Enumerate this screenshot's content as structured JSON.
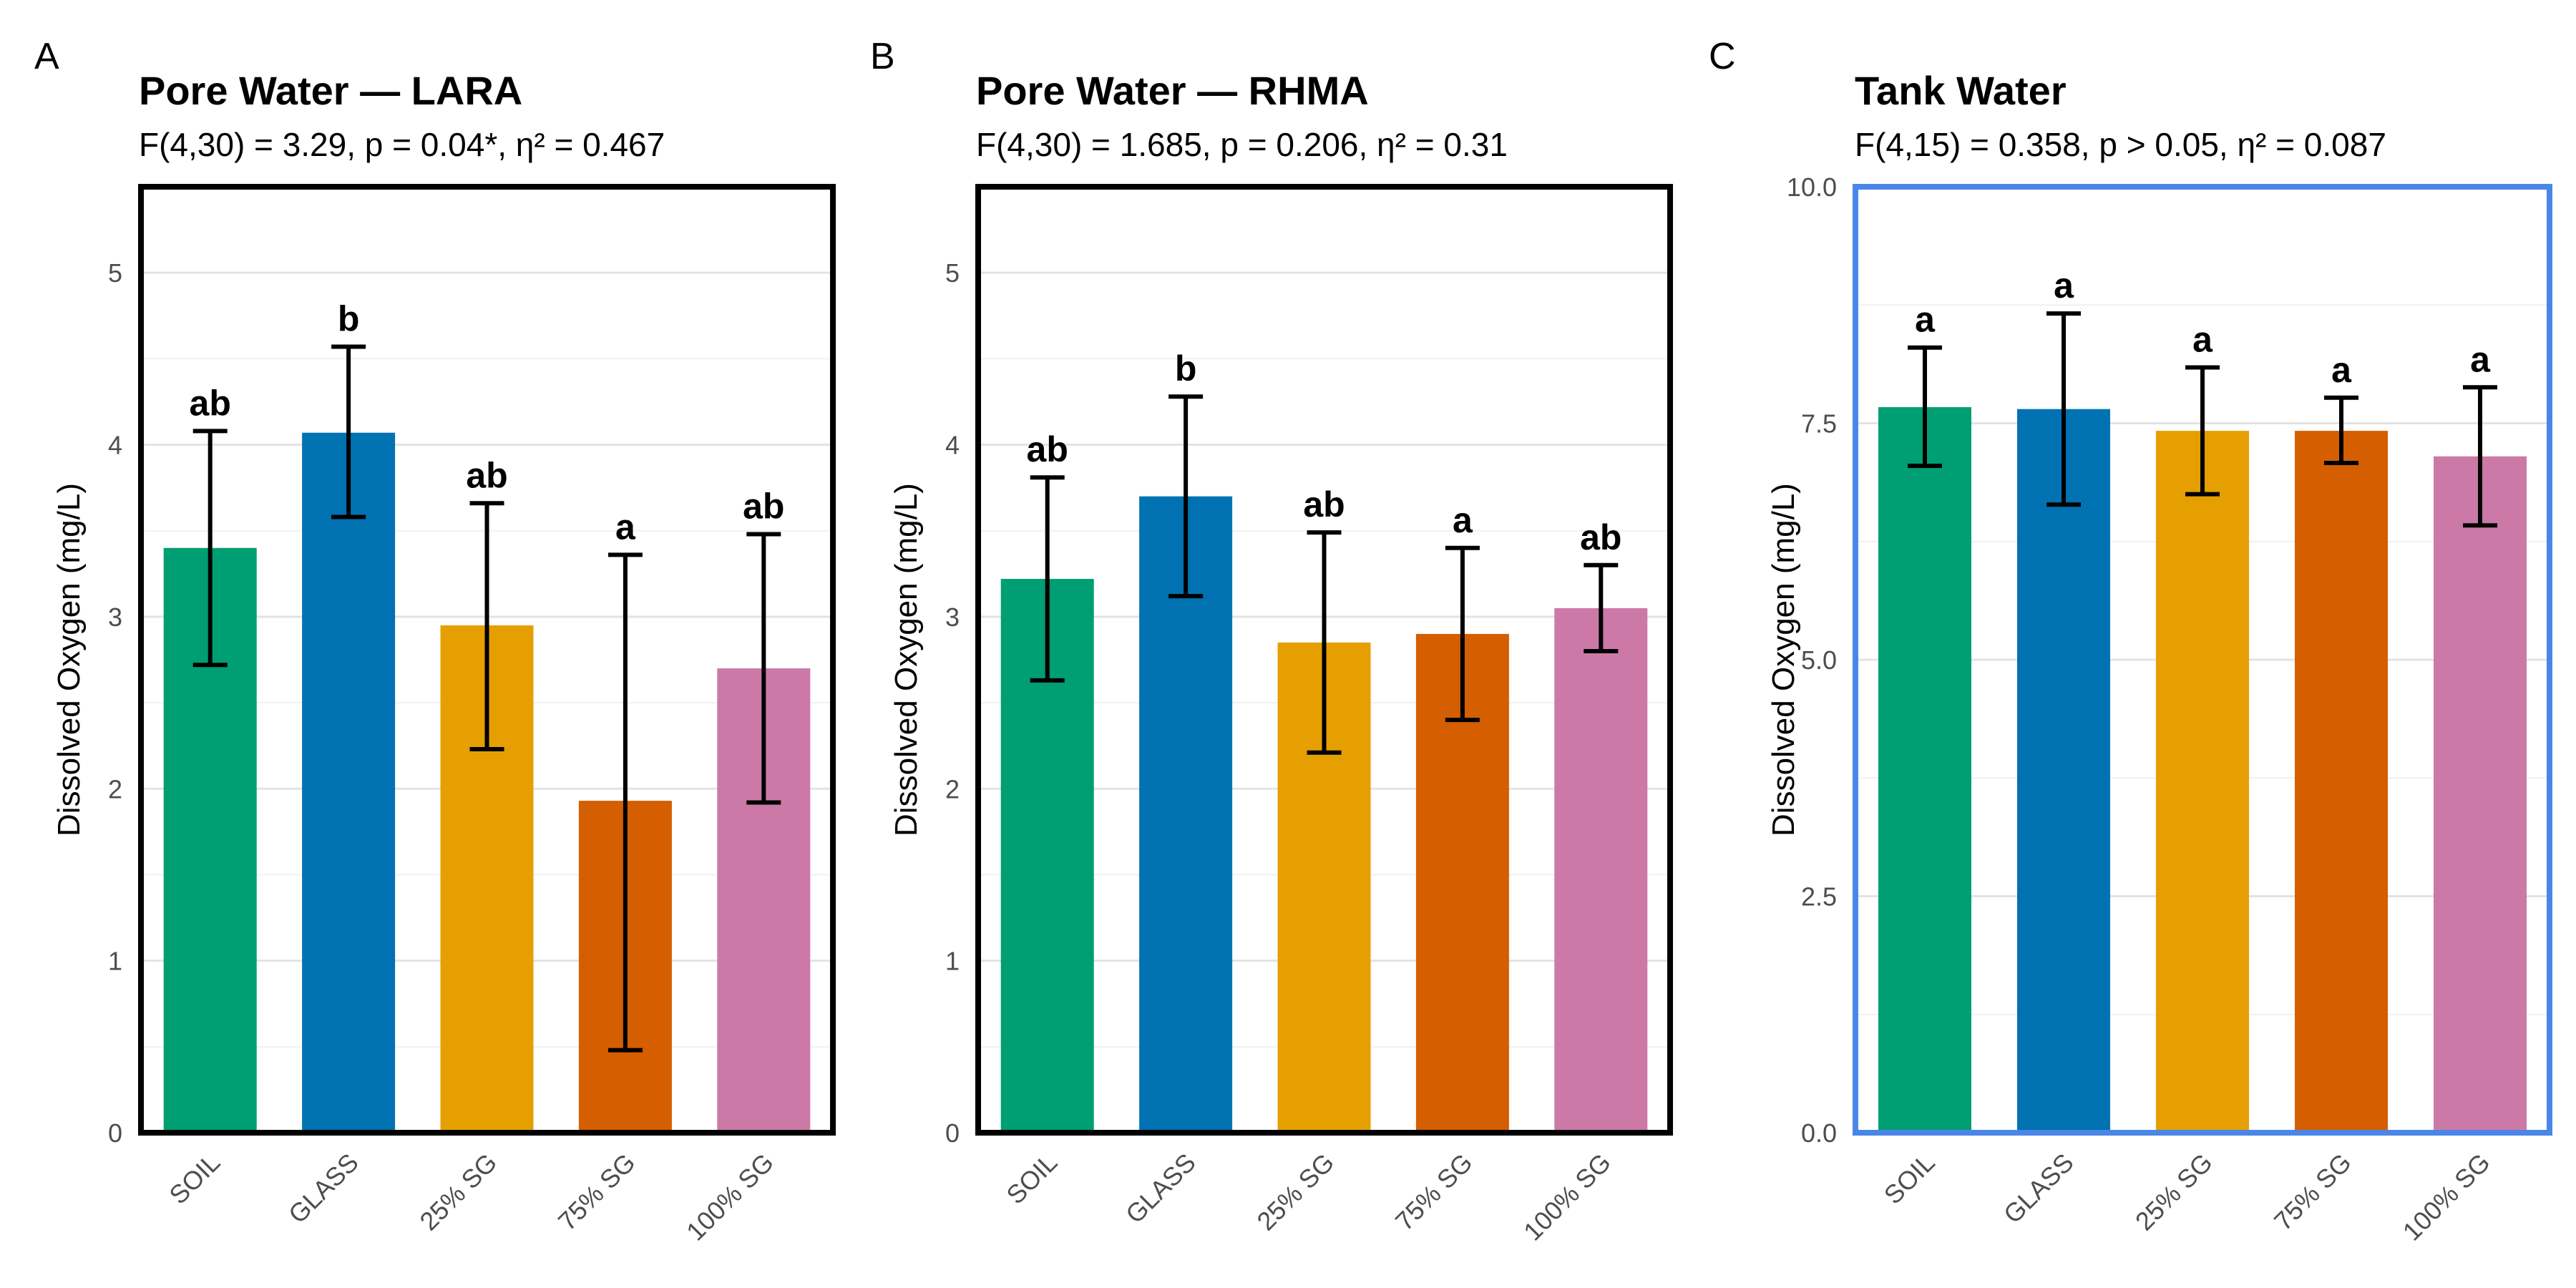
{
  "chart_data": [
    {
      "type": "bar",
      "panel_label": "A",
      "title": "Pore Water — LARA",
      "subtitle": "F(4,30) = 3.29, p = 0.04*, η² = 0.467",
      "ylabel": "Dissolved Oxygen (mg/L)",
      "xlabel": "",
      "ylim": [
        0,
        5.5
      ],
      "yticks": [
        0,
        1,
        2,
        3,
        4,
        5
      ],
      "ytick_labels": [
        "0",
        "1",
        "2",
        "3",
        "4",
        "5"
      ],
      "categories": [
        "SOIL",
        "GLASS",
        "25% SG",
        "75% SG",
        "100% SG"
      ],
      "values": [
        3.4,
        4.07,
        2.95,
        1.93,
        2.7
      ],
      "error_low": [
        2.72,
        3.58,
        2.23,
        0.48,
        1.92
      ],
      "error_high": [
        4.08,
        4.57,
        3.66,
        3.36,
        3.48
      ],
      "significance": [
        "ab",
        "b",
        "ab",
        "a",
        "ab"
      ],
      "frame_color": "#000000",
      "grid": true
    },
    {
      "type": "bar",
      "panel_label": "B",
      "title": "Pore Water — RHMA",
      "subtitle": "F(4,30) = 1.685, p = 0.206, η² = 0.31",
      "ylabel": "Dissolved Oxygen (mg/L)",
      "xlabel": "",
      "ylim": [
        0,
        5.5
      ],
      "yticks": [
        0,
        1,
        2,
        3,
        4,
        5
      ],
      "ytick_labels": [
        "0",
        "1",
        "2",
        "3",
        "4",
        "5"
      ],
      "categories": [
        "SOIL",
        "GLASS",
        "25% SG",
        "75% SG",
        "100% SG"
      ],
      "values": [
        3.22,
        3.7,
        2.85,
        2.9,
        3.05
      ],
      "error_low": [
        2.63,
        3.12,
        2.21,
        2.4,
        2.8
      ],
      "error_high": [
        3.81,
        4.28,
        3.49,
        3.4,
        3.3
      ],
      "significance": [
        "ab",
        "b",
        "ab",
        "a",
        "ab"
      ],
      "frame_color": "#000000",
      "grid": true
    },
    {
      "type": "bar",
      "panel_label": "C",
      "title": "Tank Water",
      "subtitle": "F(4,15) = 0.358, p > 0.05, η² = 0.087",
      "ylabel": "Dissolved Oxygen (mg/L)",
      "xlabel": "",
      "ylim": [
        0,
        10
      ],
      "yticks": [
        0,
        2.5,
        5,
        7.5,
        10
      ],
      "ytick_labels": [
        "0.0",
        "2.5",
        "5.0",
        "7.5",
        "10.0"
      ],
      "categories": [
        "SOIL",
        "GLASS",
        "25% SG",
        "75% SG",
        "100% SG"
      ],
      "values": [
        7.67,
        7.65,
        7.42,
        7.42,
        7.15
      ],
      "error_low": [
        7.05,
        6.64,
        6.75,
        7.08,
        6.42
      ],
      "error_high": [
        8.3,
        8.66,
        8.09,
        7.77,
        7.88
      ],
      "significance": [
        "a",
        "a",
        "a",
        "a",
        "a"
      ],
      "frame_color": "#4a86e8",
      "grid": true
    }
  ],
  "colors": {
    "SOIL": "#009e73",
    "GLASS": "#0072b2",
    "25% SG": "#e69f00",
    "75% SG": "#d55e00",
    "100% SG": "#cc79a7"
  }
}
